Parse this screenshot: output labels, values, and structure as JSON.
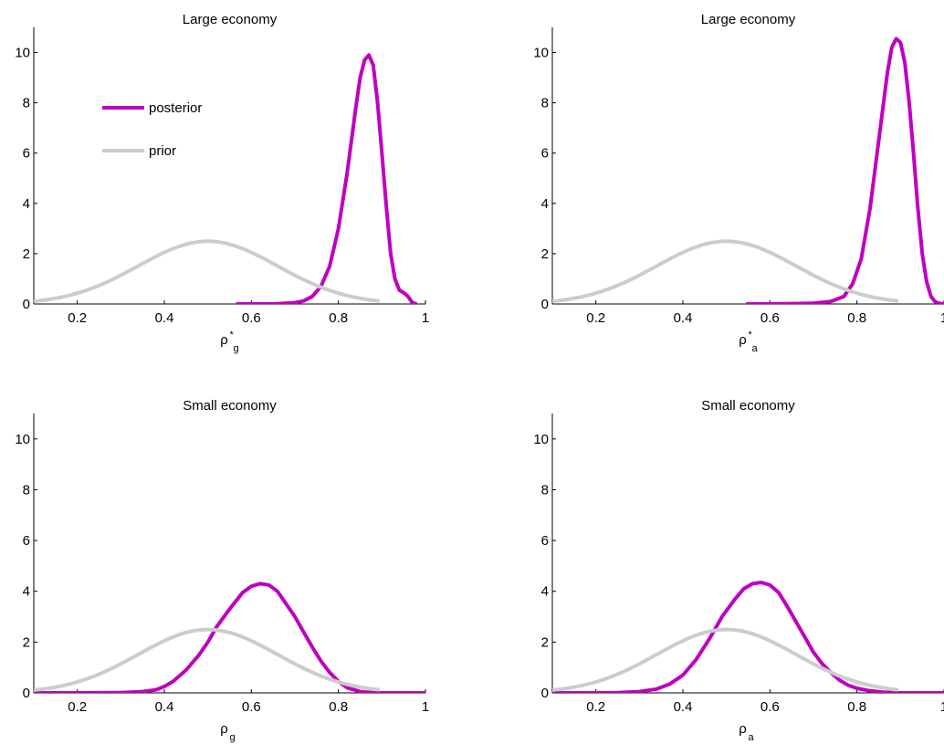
{
  "figure": {
    "colors": {
      "posterior": "#c000c0",
      "prior": "#cccccc",
      "axis": "#000000"
    }
  },
  "chart_data": [
    {
      "type": "line",
      "title": "Large economy",
      "xlabel": {
        "base": "ρ",
        "sup": "*",
        "sub": "g"
      },
      "xlim": [
        0.1,
        1
      ],
      "ylim": [
        0,
        11
      ],
      "xticks": [
        0.2,
        0.4,
        0.6,
        0.8,
        1
      ],
      "xtick_labels": [
        "0.2",
        "0.4",
        "0.6",
        "0.8",
        "1"
      ],
      "yticks": [
        0,
        2,
        4,
        6,
        8,
        10
      ],
      "ytick_labels": [
        "0",
        "2",
        "4",
        "6",
        "8",
        "10"
      ],
      "legend": {
        "placement": "upper-left",
        "entries": [
          "posterior",
          "prior"
        ]
      },
      "series": [
        {
          "name": "posterior",
          "color": "#c000c0",
          "x": [
            0.565,
            0.6,
            0.65,
            0.7,
            0.72,
            0.74,
            0.76,
            0.78,
            0.8,
            0.82,
            0.84,
            0.85,
            0.86,
            0.87,
            0.88,
            0.89,
            0.9,
            0.91,
            0.92,
            0.93,
            0.94,
            0.95,
            0.96,
            0.97,
            0.98
          ],
          "y": [
            0,
            0,
            0,
            0.05,
            0.12,
            0.3,
            0.7,
            1.5,
            3.0,
            5.2,
            7.8,
            9.0,
            9.7,
            9.9,
            9.5,
            8.0,
            6.0,
            3.9,
            2.0,
            1.0,
            0.55,
            0.45,
            0.3,
            0.05,
            0
          ]
        },
        {
          "name": "prior",
          "color": "#cccccc",
          "dist": "normal",
          "mu": 0.5,
          "sigma": 0.16,
          "x_range": [
            0.1,
            0.895
          ]
        }
      ]
    },
    {
      "type": "line",
      "title": "Large economy",
      "xlabel": {
        "base": "ρ",
        "sup": "*",
        "sub": "a"
      },
      "xlim": [
        0.1,
        1
      ],
      "ylim": [
        0,
        11
      ],
      "xticks": [
        0.2,
        0.4,
        0.6,
        0.8,
        1
      ],
      "xtick_labels": [
        "0.2",
        "0.4",
        "0.6",
        "0.8",
        "1"
      ],
      "yticks": [
        0,
        2,
        4,
        6,
        8,
        10
      ],
      "ytick_labels": [
        "0",
        "2",
        "4",
        "6",
        "8",
        "10"
      ],
      "series": [
        {
          "name": "posterior",
          "color": "#c000c0",
          "x": [
            0.545,
            0.6,
            0.7,
            0.74,
            0.77,
            0.79,
            0.81,
            0.83,
            0.85,
            0.87,
            0.88,
            0.89,
            0.9,
            0.91,
            0.92,
            0.93,
            0.94,
            0.95,
            0.96,
            0.97,
            0.98,
            0.99,
            1.0
          ],
          "y": [
            0,
            0,
            0.03,
            0.1,
            0.3,
            0.8,
            1.8,
            3.8,
            6.5,
            9.2,
            10.2,
            10.55,
            10.4,
            9.6,
            8.0,
            6.0,
            3.8,
            2.0,
            0.9,
            0.3,
            0.08,
            0.02,
            0
          ]
        },
        {
          "name": "prior",
          "color": "#cccccc",
          "dist": "normal",
          "mu": 0.5,
          "sigma": 0.16,
          "x_range": [
            0.1,
            0.895
          ]
        }
      ]
    },
    {
      "type": "line",
      "title": "Small economy",
      "xlabel": {
        "base": "ρ",
        "sup": "",
        "sub": "g"
      },
      "xlim": [
        0.1,
        1
      ],
      "ylim": [
        0,
        11
      ],
      "xticks": [
        0.2,
        0.4,
        0.6,
        0.8,
        1
      ],
      "xtick_labels": [
        "0.2",
        "0.4",
        "0.6",
        "0.8",
        "1"
      ],
      "yticks": [
        0,
        2,
        4,
        6,
        8,
        10
      ],
      "ytick_labels": [
        "0",
        "2",
        "4",
        "6",
        "8",
        "10"
      ],
      "series": [
        {
          "name": "posterior",
          "color": "#c000c0",
          "x": [
            0.1,
            0.2,
            0.3,
            0.35,
            0.38,
            0.4,
            0.42,
            0.45,
            0.48,
            0.5,
            0.52,
            0.55,
            0.58,
            0.6,
            0.62,
            0.64,
            0.66,
            0.68,
            0.7,
            0.72,
            0.74,
            0.76,
            0.78,
            0.8,
            0.82,
            0.85,
            0.88,
            0.9,
            0.95,
            1.0
          ],
          "y": [
            0,
            0,
            0.01,
            0.05,
            0.12,
            0.25,
            0.45,
            0.9,
            1.5,
            2.0,
            2.6,
            3.3,
            3.95,
            4.2,
            4.3,
            4.25,
            4.0,
            3.5,
            3.0,
            2.4,
            1.8,
            1.25,
            0.8,
            0.45,
            0.2,
            0.05,
            0.01,
            0,
            0,
            0
          ]
        },
        {
          "name": "prior",
          "color": "#cccccc",
          "dist": "normal",
          "mu": 0.5,
          "sigma": 0.16,
          "x_range": [
            0.1,
            0.895
          ]
        }
      ]
    },
    {
      "type": "line",
      "title": "Small economy",
      "xlabel": {
        "base": "ρ",
        "sup": "",
        "sub": "a"
      },
      "xlim": [
        0.1,
        1
      ],
      "ylim": [
        0,
        11
      ],
      "xticks": [
        0.2,
        0.4,
        0.6,
        0.8,
        1
      ],
      "xtick_labels": [
        "0.2",
        "0.4",
        "0.6",
        "0.8",
        "1"
      ],
      "yticks": [
        0,
        2,
        4,
        6,
        8,
        10
      ],
      "ytick_labels": [
        "0",
        "2",
        "4",
        "6",
        "8",
        "10"
      ],
      "series": [
        {
          "name": "posterior",
          "color": "#c000c0",
          "x": [
            0.1,
            0.2,
            0.25,
            0.3,
            0.34,
            0.37,
            0.4,
            0.43,
            0.46,
            0.49,
            0.52,
            0.54,
            0.56,
            0.58,
            0.6,
            0.62,
            0.64,
            0.66,
            0.68,
            0.7,
            0.72,
            0.74,
            0.76,
            0.78,
            0.8,
            0.83,
            0.86,
            0.9,
            0.95,
            1.0
          ],
          "y": [
            0,
            0,
            0.01,
            0.05,
            0.15,
            0.35,
            0.7,
            1.3,
            2.1,
            3.0,
            3.7,
            4.1,
            4.3,
            4.35,
            4.25,
            3.95,
            3.4,
            2.8,
            2.2,
            1.6,
            1.15,
            0.8,
            0.5,
            0.3,
            0.18,
            0.08,
            0.03,
            0,
            0,
            0
          ]
        },
        {
          "name": "prior",
          "color": "#cccccc",
          "dist": "normal",
          "mu": 0.5,
          "sigma": 0.16,
          "x_range": [
            0.1,
            0.895
          ]
        }
      ]
    }
  ]
}
